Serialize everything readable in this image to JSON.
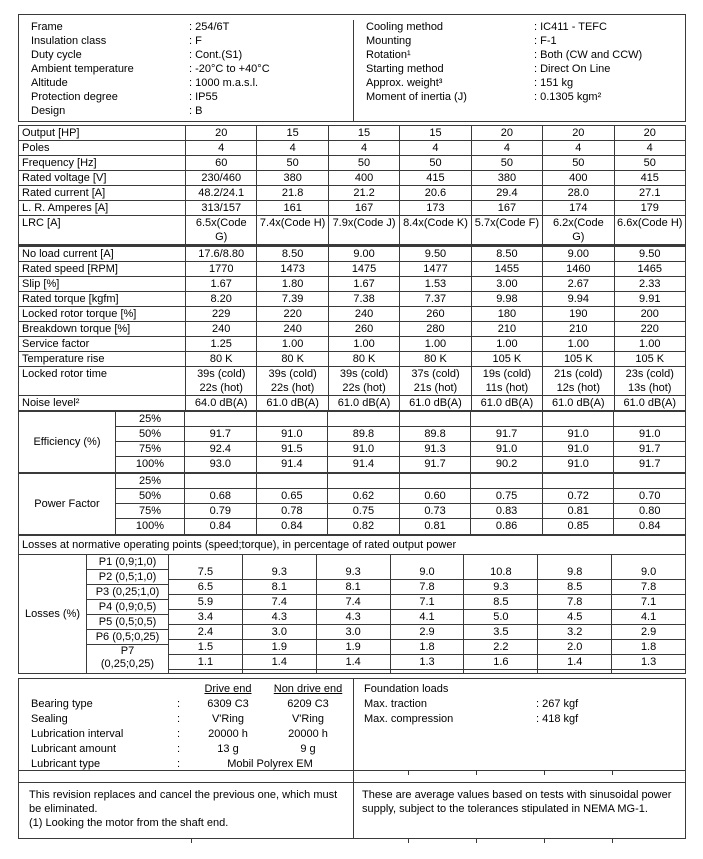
{
  "ink_color": "#000000",
  "line_color": "#3a3a3a",
  "general": {
    "left": [
      {
        "label": "Frame",
        "value": ": 254/6T"
      },
      {
        "label": "Insulation class",
        "value": ": F"
      },
      {
        "label": "Duty cycle",
        "value": ": Cont.(S1)"
      },
      {
        "label": "Ambient temperature",
        "value": ": -20°C to +40°C"
      },
      {
        "label": "Altitude",
        "value": ": 1000 m.a.s.l."
      },
      {
        "label": "Protection degree",
        "value": ": IP55"
      },
      {
        "label": "Design",
        "value": ": B"
      }
    ],
    "right": [
      {
        "label": "Cooling method",
        "value": ": IC411 - TEFC"
      },
      {
        "label": "Mounting",
        "value": ": F-1"
      },
      {
        "label": "Rotation¹",
        "value": ": Both (CW and CCW)"
      },
      {
        "label": "Starting method",
        "value": ": Direct On Line"
      },
      {
        "label": "Approx. weight³",
        "value": ": 151 kg"
      },
      {
        "label": "Moment of inertia (J)",
        "value": ": 0.1305 kgm²"
      }
    ]
  },
  "spec_table": {
    "rows": [
      {
        "label": "Output [HP]",
        "values": [
          "20",
          "15",
          "15",
          "15",
          "20",
          "20",
          "20"
        ]
      },
      {
        "label": "Poles",
        "values": [
          "4",
          "4",
          "4",
          "4",
          "4",
          "4",
          "4"
        ]
      },
      {
        "label": "Frequency [Hz]",
        "values": [
          "60",
          "50",
          "50",
          "50",
          "50",
          "50",
          "50"
        ]
      },
      {
        "label": "Rated voltage [V]",
        "values": [
          "230/460",
          "380",
          "400",
          "415",
          "380",
          "400",
          "415"
        ]
      },
      {
        "label": "Rated current [A]",
        "values": [
          "48.2/24.1",
          "21.8",
          "21.2",
          "20.6",
          "29.4",
          "28.0",
          "27.1"
        ]
      },
      {
        "label": "L. R. Amperes [A]",
        "values": [
          "313/157",
          "161",
          "167",
          "173",
          "167",
          "174",
          "179"
        ]
      },
      {
        "label": "LRC [A]",
        "values": [
          "6.5x(Code\nG)",
          "7.4x(Code H)",
          "7.9x(Code J)",
          "8.4x(Code K)",
          "5.7x(Code F)",
          "6.2x(Code\nG)",
          "6.6x(Code H)"
        ]
      },
      {
        "label": "No load current [A]",
        "group2": true,
        "values": [
          "17.6/8.80",
          "8.50",
          "9.00",
          "9.50",
          "8.50",
          "9.00",
          "9.50"
        ]
      },
      {
        "label": "Rated speed [RPM]",
        "values": [
          "1770",
          "1473",
          "1475",
          "1477",
          "1455",
          "1460",
          "1465"
        ]
      },
      {
        "label": "Slip [%]",
        "values": [
          "1.67",
          "1.80",
          "1.67",
          "1.53",
          "3.00",
          "2.67",
          "2.33"
        ]
      },
      {
        "label": "Rated torque [kgfm]",
        "values": [
          "8.20",
          "7.39",
          "7.38",
          "7.37",
          "9.98",
          "9.94",
          "9.91"
        ]
      },
      {
        "label": "Locked rotor torque [%]",
        "values": [
          "229",
          "220",
          "240",
          "260",
          "180",
          "190",
          "200"
        ]
      },
      {
        "label": "Breakdown torque [%]",
        "values": [
          "240",
          "240",
          "260",
          "280",
          "210",
          "210",
          "220"
        ]
      },
      {
        "label": "Service factor",
        "values": [
          "1.25",
          "1.00",
          "1.00",
          "1.00",
          "1.00",
          "1.00",
          "1.00"
        ]
      },
      {
        "label": "Temperature rise",
        "values": [
          "80 K",
          "80 K",
          "80 K",
          "80 K",
          "105 K",
          "105 K",
          "105 K"
        ]
      },
      {
        "label": "Locked rotor time",
        "values": [
          "39s (cold)\n22s (hot)",
          "39s (cold)\n22s (hot)",
          "39s (cold)\n22s (hot)",
          "37s (cold)\n21s (hot)",
          "19s (cold)\n11s (hot)",
          "21s (cold)\n12s (hot)",
          "23s (cold)\n13s (hot)"
        ]
      },
      {
        "label": "Noise level²",
        "values": [
          "64.0 dB(A)",
          "61.0 dB(A)",
          "61.0 dB(A)",
          "61.0 dB(A)",
          "61.0 dB(A)",
          "61.0 dB(A)",
          "61.0 dB(A)"
        ]
      }
    ]
  },
  "efficiency": {
    "label": "Efficiency (%)",
    "rows": [
      {
        "load": "25%",
        "values": [
          "",
          "",
          "",
          "",
          "",
          "",
          ""
        ]
      },
      {
        "load": "50%",
        "values": [
          "91.7",
          "91.0",
          "89.8",
          "89.8",
          "91.7",
          "91.0",
          "91.0"
        ]
      },
      {
        "load": "75%",
        "values": [
          "92.4",
          "91.5",
          "91.0",
          "91.3",
          "91.0",
          "91.0",
          "91.7"
        ]
      },
      {
        "load": "100%",
        "values": [
          "93.0",
          "91.4",
          "91.4",
          "91.7",
          "90.2",
          "91.0",
          "91.7"
        ]
      }
    ]
  },
  "power_factor": {
    "label": "Power Factor",
    "rows": [
      {
        "load": "25%",
        "values": [
          "",
          "",
          "",
          "",
          "",
          "",
          ""
        ]
      },
      {
        "load": "50%",
        "values": [
          "0.68",
          "0.65",
          "0.62",
          "0.60",
          "0.75",
          "0.72",
          "0.70"
        ]
      },
      {
        "load": "75%",
        "values": [
          "0.79",
          "0.78",
          "0.75",
          "0.73",
          "0.83",
          "0.81",
          "0.80"
        ]
      },
      {
        "load": "100%",
        "values": [
          "0.84",
          "0.84",
          "0.82",
          "0.81",
          "0.86",
          "0.85",
          "0.84"
        ]
      }
    ]
  },
  "losses": {
    "header": "Losses at normative operating points (speed;torque), in percentage of rated output power",
    "label": "Losses (%)",
    "rows": [
      {
        "point": "P1 (0,9;1,0)",
        "values": [
          "7.5",
          "9.3",
          "9.3",
          "9.0",
          "10.8",
          "9.8",
          "9.0"
        ]
      },
      {
        "point": "P2 (0,5;1,0)",
        "values": [
          "6.5",
          "8.1",
          "8.1",
          "7.8",
          "9.3",
          "8.5",
          "7.8"
        ]
      },
      {
        "point": "P3 (0,25;1,0)",
        "values": [
          "5.9",
          "7.4",
          "7.4",
          "7.1",
          "8.5",
          "7.8",
          "7.1"
        ]
      },
      {
        "point": "P4 (0,9;0,5)",
        "values": [
          "3.4",
          "4.3",
          "4.3",
          "4.1",
          "5.0",
          "4.5",
          "4.1"
        ]
      },
      {
        "point": "P5 (0,5;0,5)",
        "values": [
          "2.4",
          "3.0",
          "3.0",
          "2.9",
          "3.5",
          "3.2",
          "2.9"
        ]
      },
      {
        "point": "P6 (0,5;0,25)",
        "values": [
          "1.5",
          "1.9",
          "1.9",
          "1.8",
          "2.2",
          "2.0",
          "1.8"
        ]
      },
      {
        "point": "P7\n(0,25;0,25)",
        "values": [
          "1.1",
          "1.4",
          "1.4",
          "1.3",
          "1.6",
          "1.4",
          "1.3"
        ]
      }
    ]
  },
  "bearings": {
    "col_headers": [
      "Drive end",
      "Non drive end"
    ],
    "rows": [
      {
        "label": "Bearing type",
        "colon": ":",
        "de": "6309 C3",
        "nde": "6209 C3"
      },
      {
        "label": "Sealing",
        "colon": ":",
        "de": "V'Ring",
        "nde": "V'Ring"
      },
      {
        "label": "Lubrication interval",
        "colon": ":",
        "de": "20000 h",
        "nde": "20000 h"
      },
      {
        "label": "Lubricant amount",
        "colon": ":",
        "de": "13 g",
        "nde": "9 g"
      }
    ],
    "lubricant_type": {
      "label": "Lubricant type",
      "colon": ":",
      "value": "Mobil Polyrex EM"
    }
  },
  "foundation": {
    "title": "Foundation loads",
    "rows": [
      {
        "label": "Max. traction",
        "value": ": 267 kgf"
      },
      {
        "label": "Max. compression",
        "value": ": 418 kgf"
      }
    ]
  },
  "notes": {
    "left": "This revision replaces and cancel the previous one, which must be eliminated.\n(1) Looking the motor from the shaft end.",
    "right": "These are average values based on tests with sinusoidal power supply, subject to the tolerances stipulated in NEMA MG-1."
  }
}
